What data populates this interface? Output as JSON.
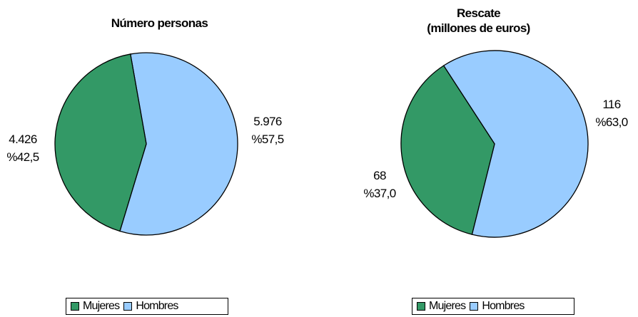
{
  "chart_data": [
    {
      "type": "pie",
      "title": "Número personas",
      "categories": [
        "Mujeres",
        "Hombres"
      ],
      "values": [
        4426,
        5976
      ],
      "value_labels": [
        "4.426",
        "5.976"
      ],
      "percent_labels": [
        "%42,5",
        "%57,5"
      ],
      "colors": [
        "#339966",
        "#99CCFF"
      ],
      "legend": "bottom"
    },
    {
      "type": "pie",
      "title": "Rescate (millones de euros)",
      "title_lines": [
        "Rescate",
        "(millones de euros)"
      ],
      "categories": [
        "Mujeres",
        "Hombres"
      ],
      "values": [
        68,
        116
      ],
      "value_labels": [
        "68",
        "116"
      ],
      "percent_labels": [
        "%37,0",
        "%63,0"
      ],
      "colors": [
        "#339966",
        "#99CCFF"
      ],
      "legend": "bottom"
    }
  ]
}
